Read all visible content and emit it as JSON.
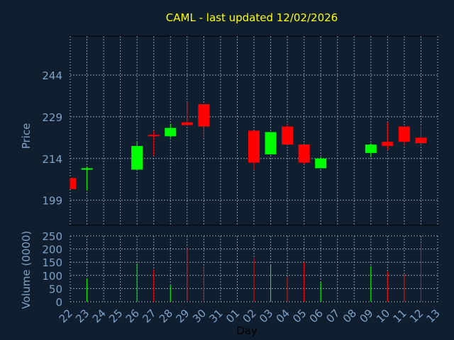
{
  "chart_data": {
    "type": "candlestick",
    "title": "CAML - last updated 12/02/2026",
    "xlabel": "Day",
    "ylabel": "Price",
    "volume_label": "Volume (0000)",
    "grid": true,
    "price_ylim": [
      190,
      258
    ],
    "price_yticks": [
      199,
      214,
      229,
      244
    ],
    "volume_ylim": [
      0,
      250
    ],
    "volume_yticks": [
      0,
      50,
      100,
      150,
      200,
      250
    ],
    "x_ticks": [
      "22",
      "23",
      "24",
      "25",
      "26",
      "27",
      "28",
      "29",
      "30",
      "31",
      "01",
      "02",
      "03",
      "04",
      "05",
      "06",
      "07",
      "08",
      "09",
      "10",
      "11",
      "12",
      "13"
    ],
    "candles": [
      {
        "day": "22",
        "open": 207,
        "close": 203,
        "high": 207,
        "low": 203,
        "volume": 0
      },
      {
        "day": "23",
        "open": 210,
        "close": 210.5,
        "high": 211,
        "low": 202.5,
        "volume": 88
      },
      {
        "day": "26",
        "open": 210,
        "close": 218.5,
        "high": 220,
        "low": 210,
        "volume": 145
      },
      {
        "day": "27",
        "open": 222.5,
        "close": 222,
        "high": 224,
        "low": 215,
        "volume": 122
      },
      {
        "day": "28",
        "open": 222,
        "close": 225,
        "high": 226.5,
        "low": 221.5,
        "volume": 62
      },
      {
        "day": "29",
        "open": 227,
        "close": 226,
        "high": 234.5,
        "low": 226,
        "volume": 205
      },
      {
        "day": "30",
        "open": 233.5,
        "close": 225.5,
        "high": 233.5,
        "low": 221.5,
        "volume": 135
      },
      {
        "day": "02",
        "open": 224,
        "close": 212.5,
        "high": 224,
        "low": 210,
        "volume": 165
      },
      {
        "day": "03",
        "open": 215.5,
        "close": 223.5,
        "high": 223.5,
        "low": 215.5,
        "volume": 140
      },
      {
        "day": "04",
        "open": 225.5,
        "close": 219,
        "high": 226.5,
        "low": 219,
        "volume": 95
      },
      {
        "day": "05",
        "open": 219,
        "close": 212.5,
        "high": 219,
        "low": 212,
        "volume": 150
      },
      {
        "day": "06",
        "open": 210.5,
        "close": 214,
        "high": 214.5,
        "low": 210.5,
        "volume": 75
      },
      {
        "day": "09",
        "open": 216,
        "close": 219,
        "high": 219.5,
        "low": 214.5,
        "volume": 135
      },
      {
        "day": "10",
        "open": 220,
        "close": 218.5,
        "high": 227,
        "low": 217,
        "volume": 115
      },
      {
        "day": "11",
        "open": 225.5,
        "close": 220,
        "high": 225.5,
        "low": 218.5,
        "volume": 105
      },
      {
        "day": "12",
        "open": 221.5,
        "close": 219.5,
        "high": 225.5,
        "low": 219,
        "volume": 225
      }
    ],
    "colors": {
      "background": "#0f1f30",
      "plot": "#0f1f30",
      "up": "#00ff00",
      "down": "#ff0000",
      "grid": "#8a97a6",
      "axis_text": "#7fa2c6",
      "title": "#ffff00"
    }
  }
}
